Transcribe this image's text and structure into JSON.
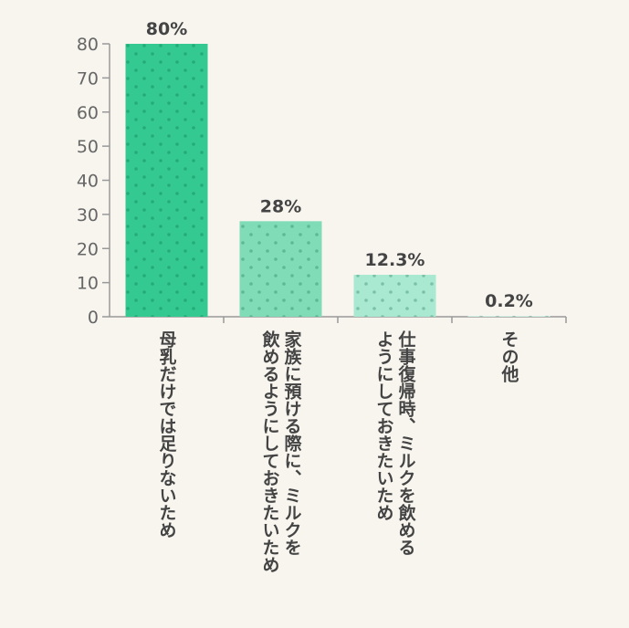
{
  "chart_data": {
    "type": "bar",
    "categories": [
      [
        "母乳だけでは足りないため"
      ],
      [
        "家族に預ける際に、ミルクを",
        "飲めるようにしておきたいため"
      ],
      [
        "仕事復帰時、ミルクを飲める",
        "ようにしておきたいため"
      ],
      [
        "その他"
      ]
    ],
    "values": [
      80,
      28,
      12.3,
      0.2
    ],
    "value_labels": [
      "80%",
      "28%",
      "12.3%",
      "0.2%"
    ],
    "bar_colors": [
      "#33c991",
      "#7fdcb7",
      "#a9e9d1",
      "#d4f3e6"
    ],
    "ylim": [
      0,
      80
    ],
    "yticks": [
      "0",
      "10",
      "20",
      "30",
      "40",
      "50",
      "60",
      "70",
      "80"
    ],
    "grid": false,
    "axis_color": "#999999"
  }
}
